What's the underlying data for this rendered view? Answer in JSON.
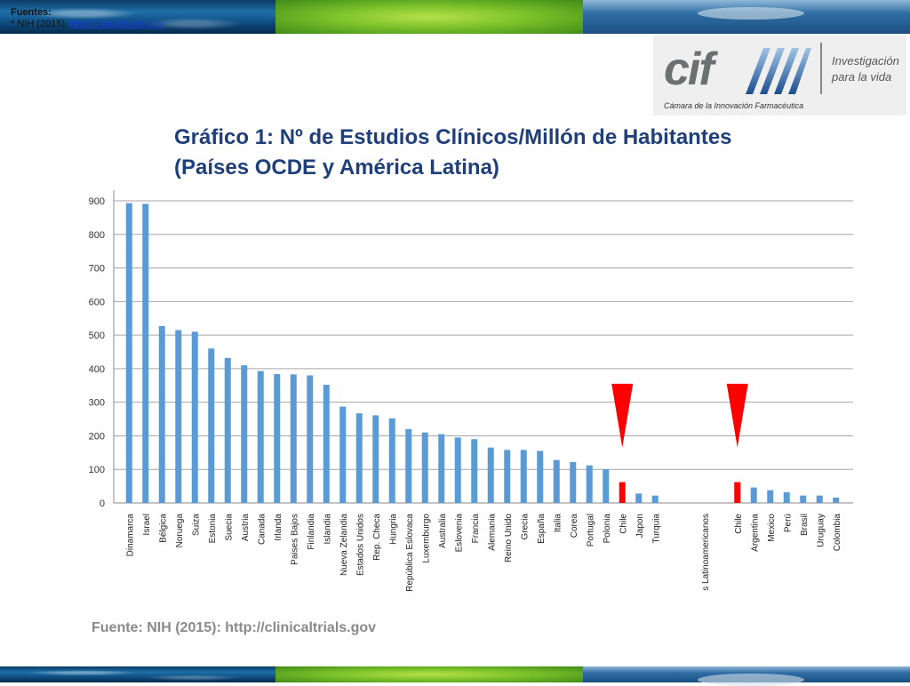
{
  "sources": {
    "heading": "Fuentes:",
    "bullet": "*",
    "entry_prefix": "NIH (2015):",
    "entry_link": "http://clinicaltrials.gov"
  },
  "logo": {
    "brand": "cif",
    "tagline_line1": "Investigación",
    "tagline_line2": "para la vida",
    "organization": "Cámara de la Innovación Farmacéutica"
  },
  "title": {
    "line1": "Gráfico 1: Nº de Estudios Clínicos/Millón de Habitantes",
    "line2": "(Países OCDE y América Latina)"
  },
  "footer": {
    "source": "Fuente: NIH (2015): http://clinicaltrials.gov"
  },
  "chart_data": {
    "type": "bar",
    "ylim": [
      0,
      900
    ],
    "yticks": [
      0,
      100,
      200,
      300,
      400,
      500,
      600,
      700,
      800,
      900
    ],
    "grid": true,
    "colors": {
      "default": "#5b9bd5",
      "highlight": "#ff0000",
      "marker": "#ff0000"
    },
    "categories": [
      "Dinamarca",
      "Israel",
      "Bélgica",
      "Noruega",
      "Suiza",
      "Estonia",
      "Suecia",
      "Austria",
      "Canada",
      "Irlanda",
      "Paises Bajos",
      "Finlandia",
      "Islandia",
      "Nueva Zelandia",
      "Estados Unidos",
      "Rep. Checa",
      "Hungria",
      "República Eslovaca",
      "Luxemburgo",
      "Australia",
      "Eslovenia",
      "Francia",
      "Alemania",
      "Reino Unido",
      "Grecia",
      "España",
      "Italia",
      "Corea",
      "Portugal",
      "Polonia",
      "Chile",
      "Japon",
      "Turquia",
      "",
      "",
      "s Latinoamericanos",
      "",
      "Chile",
      "Argentina",
      "Mexico",
      "Perú",
      "Brasil",
      "Uruguay",
      "Colombia"
    ],
    "values": [
      893,
      891,
      527,
      515,
      510,
      460,
      432,
      410,
      393,
      384,
      383,
      380,
      352,
      287,
      267,
      261,
      252,
      220,
      210,
      205,
      195,
      190,
      165,
      158,
      158,
      155,
      128,
      122,
      112,
      100,
      62,
      28,
      22,
      null,
      null,
      null,
      null,
      62,
      46,
      38,
      32,
      22,
      22,
      16
    ],
    "highlighted": [
      "Chile"
    ],
    "markers": [
      {
        "category_index": 30,
        "shape": "red-downward-triangle"
      },
      {
        "category_index": 37,
        "shape": "red-downward-triangle"
      }
    ]
  }
}
